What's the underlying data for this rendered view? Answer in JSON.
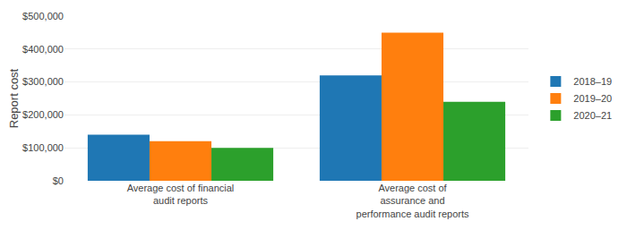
{
  "chart_data": {
    "type": "bar",
    "categories": [
      "Average cost of financial\naudit reports",
      "Average cost of\nassurance and\nperformance audit reports"
    ],
    "series": [
      {
        "name": "2018–19",
        "values": [
          140000,
          320000
        ]
      },
      {
        "name": "2019–20",
        "values": [
          120000,
          450000
        ]
      },
      {
        "name": "2020–21",
        "values": [
          100000,
          240000
        ]
      }
    ],
    "ylabel": "Report cost",
    "ylim": [
      0,
      500000
    ],
    "yticks": [
      {
        "value": 0,
        "label": "$0"
      },
      {
        "value": 100000,
        "label": "$100,000"
      },
      {
        "value": 200000,
        "label": "$200,000"
      },
      {
        "value": 300000,
        "label": "$300,000"
      },
      {
        "value": 400000,
        "label": "$400,000"
      },
      {
        "value": 500000,
        "label": "$500,000"
      }
    ],
    "grid": true,
    "legend": "right"
  }
}
